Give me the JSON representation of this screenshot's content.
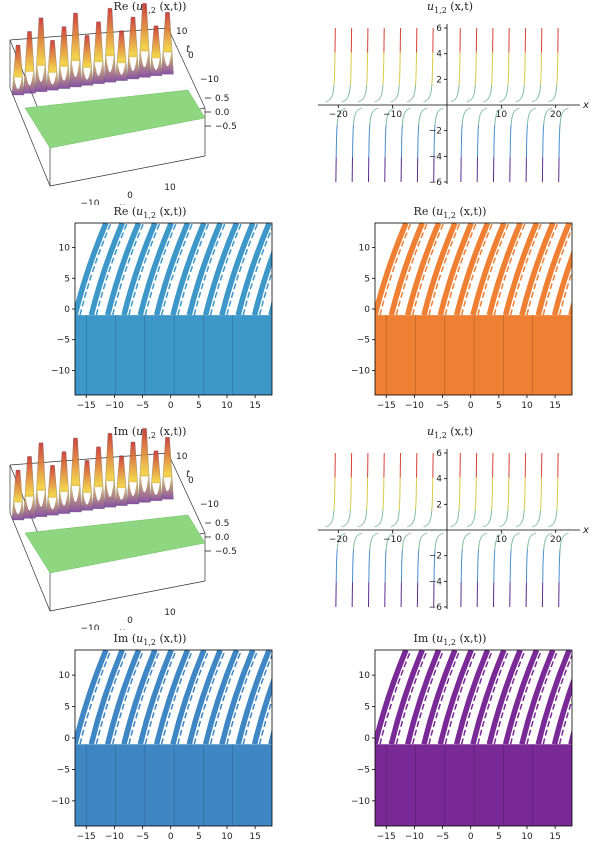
{
  "chart_data": [
    {
      "id": "p1",
      "type": "surface3d",
      "title": "Re (u1,2 (x,t))",
      "title_main": "Re (",
      "title_var": "u",
      "title_sub": "1,2",
      "title_tail": " (x,t))",
      "xlabel": "x",
      "ylabel": "t",
      "x_ticks": [
        -10,
        0,
        10
      ],
      "t_ticks": [
        10,
        0,
        -10
      ],
      "z_ticks": [
        0.5,
        0.0,
        -0.5
      ],
      "x_tick_labels": [
        "−10",
        "0",
        "10"
      ],
      "t_tick_labels": [
        "10",
        "0",
        "−10"
      ],
      "z_tick_labels": [
        "0.5",
        "0.0",
        "−0.5"
      ],
      "colors": {
        "plane": "#8ed680",
        "peak": "#c9302c",
        "mid": "#f2d03b",
        "base": "#7b3fa0"
      }
    },
    {
      "id": "p2",
      "type": "line",
      "title": "u1,2 (x,t)",
      "title_main": "",
      "title_var": "u",
      "title_sub": "1,2",
      "title_tail": " (x,t)",
      "xlabel": "x",
      "xlim": [
        -23,
        23
      ],
      "ylim": [
        -6,
        6
      ],
      "x_ticks": [
        -20,
        -10,
        10,
        20
      ],
      "y_ticks": [
        -6,
        -4,
        -2,
        2,
        4,
        6
      ],
      "x_tick_labels": [
        "−20",
        "−10",
        "10",
        "20"
      ],
      "y_tick_labels": [
        "−6",
        "−4",
        "−2",
        "2",
        "4",
        "6"
      ],
      "poles": [
        -20.5,
        -17.5,
        -14.5,
        -11.5,
        -8.5,
        -5.5,
        -2.5,
        2.5,
        5.5,
        8.5,
        11.5,
        14.5,
        17.5,
        20.5
      ],
      "colors": {
        "top": "#d9423a",
        "upper": "#d9c94a",
        "middle": "#7fb9a0",
        "lower": "#4a8ec9",
        "bottom": "#5b2d8e"
      }
    },
    {
      "id": "p3",
      "type": "heatmap",
      "title": "Re (u1,2 (x,t))",
      "title_main": "Re (",
      "title_var": "u",
      "title_sub": "1,2",
      "title_tail": " (x,t))",
      "xlim": [
        -17,
        18
      ],
      "ylim": [
        -14,
        14
      ],
      "x_ticks": [
        -15,
        -10,
        -5,
        0,
        5,
        10,
        15
      ],
      "y_ticks": [
        -10,
        -5,
        0,
        5,
        10
      ],
      "x_tick_labels": [
        "−15",
        "−10",
        "−5",
        "0",
        "5",
        "10",
        "15"
      ],
      "y_tick_labels": [
        "−10",
        "−5",
        "0",
        "5",
        "10"
      ],
      "boundary_t": -1,
      "fill_color": "#3d97c9"
    },
    {
      "id": "p4",
      "type": "heatmap",
      "title": "Re (u1,2 (x,t))",
      "title_main": "Re (",
      "title_var": "u",
      "title_sub": "1,2",
      "title_tail": " (x,t))",
      "xlim": [
        -17,
        18
      ],
      "ylim": [
        -14,
        14
      ],
      "x_ticks": [
        -15,
        -10,
        -5,
        0,
        5,
        10,
        15
      ],
      "y_ticks": [
        -10,
        -5,
        0,
        5,
        10
      ],
      "x_tick_labels": [
        "−15",
        "−10",
        "−5",
        "0",
        "5",
        "10",
        "15"
      ],
      "y_tick_labels": [
        "−10",
        "−5",
        "0",
        "5",
        "10"
      ],
      "boundary_t": -1,
      "fill_color": "#ee7f33"
    },
    {
      "id": "p5",
      "type": "surface3d",
      "title": "Im (u1,2 (x,t))",
      "title_main": "Im (",
      "title_var": "u",
      "title_sub": "1,2",
      "title_tail": " (x,t))",
      "xlabel": "x",
      "ylabel": "t",
      "x_ticks": [
        -10,
        0,
        10
      ],
      "t_ticks": [
        10,
        0,
        -10
      ],
      "z_ticks": [
        0.5,
        0.0,
        -0.5
      ],
      "x_tick_labels": [
        "−10",
        "0",
        "10"
      ],
      "t_tick_labels": [
        "10",
        "0",
        "−10"
      ],
      "z_tick_labels": [
        "0.5",
        "0.0",
        "−0.5"
      ],
      "colors": {
        "plane": "#8ed680",
        "peak": "#c9302c",
        "mid": "#f2d03b",
        "base": "#7b3fa0"
      }
    },
    {
      "id": "p6",
      "type": "line",
      "title": "u1,2 (x,t)",
      "title_main": "",
      "title_var": "u",
      "title_sub": "1,2",
      "title_tail": " (x,t)",
      "xlabel": "x",
      "xlim": [
        -23,
        23
      ],
      "ylim": [
        -6,
        6
      ],
      "x_ticks": [
        -20,
        -10,
        10,
        20
      ],
      "y_ticks": [
        -6,
        -4,
        -2,
        2,
        4,
        6
      ],
      "x_tick_labels": [
        "−20",
        "−10",
        "10",
        "20"
      ],
      "y_tick_labels": [
        "−6",
        "−4",
        "−2",
        "2",
        "4",
        "6"
      ],
      "poles": [
        -20.5,
        -17.5,
        -14.5,
        -11.5,
        -8.5,
        -5.5,
        -2.5,
        2.5,
        5.5,
        8.5,
        11.5,
        14.5,
        17.5,
        20.5
      ],
      "colors": {
        "top": "#d9423a",
        "upper": "#d9c94a",
        "middle": "#7fb9a0",
        "lower": "#4a8ec9",
        "bottom": "#5b2d8e"
      }
    },
    {
      "id": "p7",
      "type": "heatmap",
      "title": "Im (u1,2 (x,t))",
      "title_main": "Im (",
      "title_var": "u",
      "title_sub": "1,2",
      "title_tail": " (x,t))",
      "xlim": [
        -17,
        18
      ],
      "ylim": [
        -14,
        14
      ],
      "x_ticks": [
        -15,
        -10,
        -5,
        0,
        5,
        10,
        15
      ],
      "y_ticks": [
        -10,
        -5,
        0,
        5,
        10
      ],
      "x_tick_labels": [
        "−15",
        "−10",
        "−5",
        "0",
        "5",
        "10",
        "15"
      ],
      "y_tick_labels": [
        "−10",
        "−5",
        "0",
        "5",
        "10"
      ],
      "boundary_t": -1,
      "fill_color": "#3f86c4"
    },
    {
      "id": "p8",
      "type": "heatmap",
      "title": "Im (u1,2 (x,t))",
      "title_main": "Im (",
      "title_var": "u",
      "title_sub": "1,2",
      "title_tail": " (x,t))",
      "xlim": [
        -17,
        18
      ],
      "ylim": [
        -14,
        14
      ],
      "x_ticks": [
        -15,
        -10,
        -5,
        0,
        5,
        10,
        15
      ],
      "y_ticks": [
        -10,
        -5,
        0,
        5,
        10
      ],
      "x_tick_labels": [
        "−15",
        "−10",
        "−5",
        "0",
        "5",
        "10",
        "15"
      ],
      "y_tick_labels": [
        "−10",
        "−5",
        "0",
        "5",
        "10"
      ],
      "boundary_t": -1,
      "fill_color": "#7a2a96"
    }
  ]
}
